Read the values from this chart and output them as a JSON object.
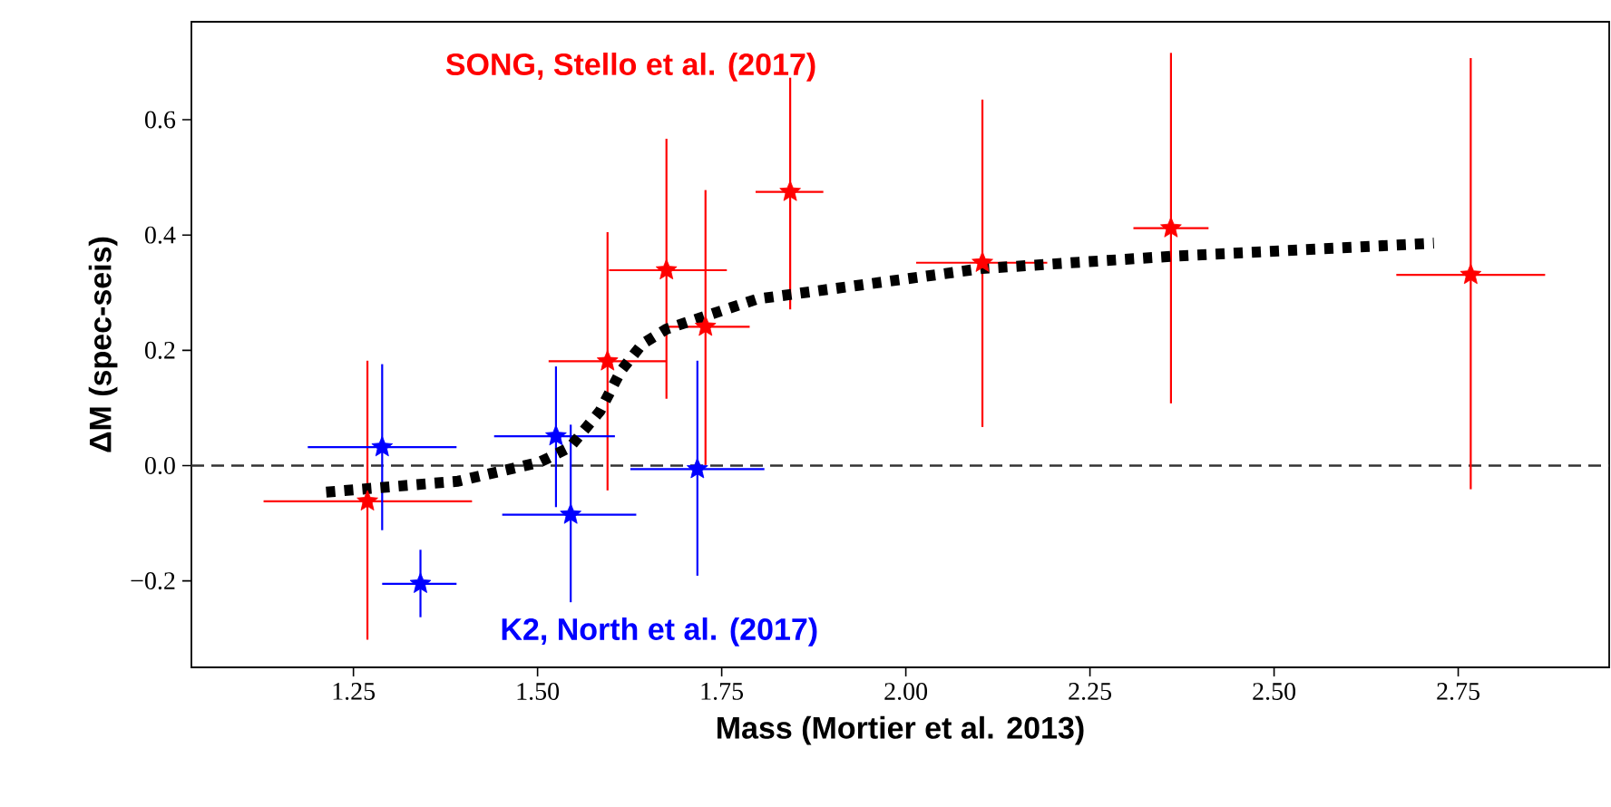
{
  "chart_data": {
    "type": "scatter",
    "xlabel": "Mass (Mortier et al. 2013)",
    "ylabel": "ΔM (spec-seis)",
    "xlim": [
      1.03,
      2.955
    ],
    "ylim": [
      -0.35,
      0.77
    ],
    "xticks": [
      1.25,
      {
        "value": 1.5,
        "label": "1.50"
      },
      1.75,
      {
        "value": 2.0,
        "label": "2.00"
      },
      2.25,
      {
        "value": 2.5,
        "label": "2.50"
      },
      2.75
    ],
    "yticks": [
      {
        "value": -0.2,
        "label": "−0.2"
      },
      {
        "value": 0.0,
        "label": "0.0"
      },
      {
        "value": 0.2,
        "label": "0.2"
      },
      {
        "value": 0.4,
        "label": "0.4"
      },
      {
        "value": 0.6,
        "label": "0.6"
      }
    ],
    "ref_lines": [
      {
        "axis": "y",
        "value": 0,
        "color": "#333333",
        "line_style": "dashed"
      }
    ],
    "series": [
      {
        "name": "SONG, Stello et al. (2017)",
        "marker": "star",
        "color": "#ff0000",
        "x": [
          1.269,
          1.595,
          1.675,
          1.728,
          1.843,
          2.104,
          2.36,
          2.767
        ],
        "values": [
          -0.062,
          0.181,
          0.339,
          0.241,
          0.475,
          0.352,
          0.412,
          0.331
        ],
        "xerrors": [
          [
            1.128,
            1.411
          ],
          [
            1.515,
            1.675
          ],
          [
            1.597,
            1.757
          ],
          [
            1.675,
            1.788
          ],
          [
            1.796,
            1.888
          ],
          [
            2.014,
            2.192
          ],
          [
            2.309,
            2.411
          ],
          [
            2.666,
            2.868
          ]
        ],
        "errors": [
          [
            -0.302,
            0.182
          ],
          [
            -0.043,
            0.405
          ],
          [
            0.116,
            0.567
          ],
          [
            0.001,
            0.478
          ],
          [
            0.271,
            0.673
          ],
          [
            0.067,
            0.635
          ],
          [
            0.108,
            0.716
          ],
          [
            -0.041,
            0.707
          ]
        ]
      },
      {
        "name": "K2, North et al. (2017)",
        "marker": "star",
        "color": "#0000ff",
        "x": [
          1.289,
          1.341,
          1.525,
          1.545,
          1.717
        ],
        "values": [
          0.032,
          -0.205,
          0.051,
          -0.085,
          -0.006
        ],
        "xerrors": [
          [
            1.188,
            1.39
          ],
          [
            1.289,
            1.39
          ],
          [
            1.441,
            1.605
          ],
          [
            1.452,
            1.634
          ],
          [
            1.626,
            1.808
          ]
        ],
        "errors": [
          [
            -0.112,
            0.176
          ],
          [
            -0.263,
            -0.146
          ],
          [
            -0.072,
            0.172
          ],
          [
            -0.237,
            0.071
          ],
          [
            -0.191,
            0.182
          ]
        ]
      },
      {
        "type": "line",
        "marker": "none",
        "line_style": "dotted",
        "color": "#000000",
        "x": [
          1.213,
          1.392,
          1.503,
          1.544,
          1.585,
          1.613,
          1.642,
          1.675,
          1.798,
          1.995,
          2.104,
          2.36,
          2.717
        ],
        "values": [
          -0.046,
          -0.027,
          0.006,
          0.032,
          0.095,
          0.164,
          0.211,
          0.237,
          0.289,
          0.323,
          0.342,
          0.363,
          0.386
        ]
      }
    ]
  }
}
